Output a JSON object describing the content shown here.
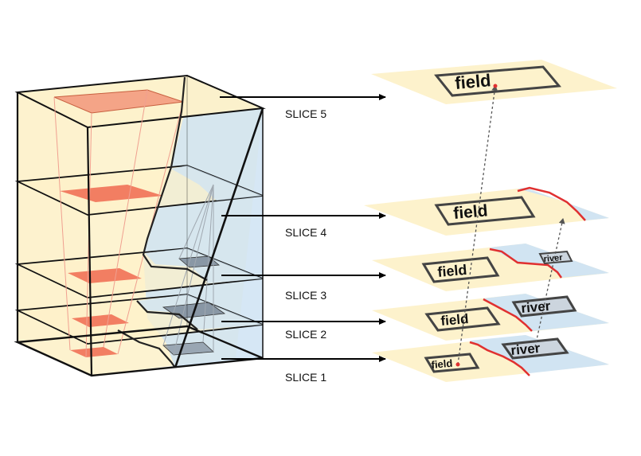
{
  "slices": [
    {
      "label": "SLICE 5",
      "tags": [
        "field"
      ]
    },
    {
      "label": "SLICE 4",
      "tags": [
        "field"
      ]
    },
    {
      "label": "SLICE 3",
      "tags": [
        "field",
        "river"
      ]
    },
    {
      "label": "SLICE 2",
      "tags": [
        "field",
        "river"
      ]
    },
    {
      "label": "SLICE 1",
      "tags": [
        "field",
        "river"
      ]
    }
  ],
  "colors": {
    "field": "#fdf1c9",
    "river": "#cfe3f3",
    "region": "#f08a70",
    "boundary": "#e03030",
    "frame": "#111111",
    "arrow": "#000000"
  }
}
